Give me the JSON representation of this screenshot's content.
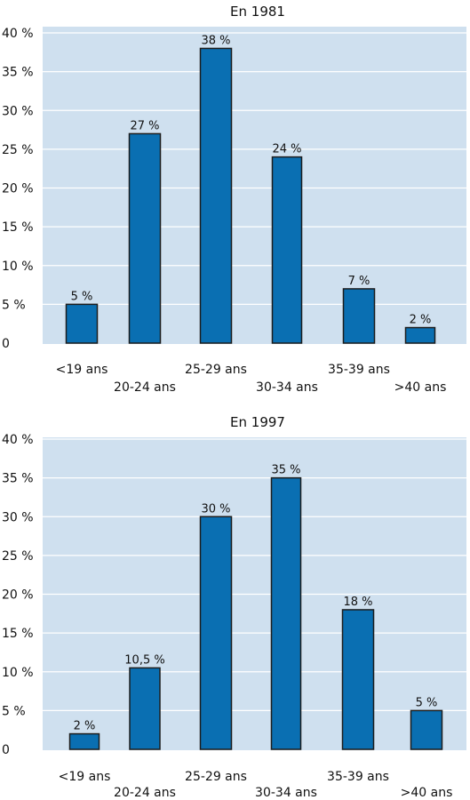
{
  "colors": {
    "bar": "#0a6fb2",
    "plot_background": "#cfe0ef",
    "gridline": "#ffffff"
  },
  "chart_data": [
    {
      "type": "bar",
      "title": "En 1981",
      "categories": [
        "<19 ans",
        "20-24 ans",
        "25-29 ans",
        "30-34 ans",
        "35-39 ans",
        ">40 ans"
      ],
      "values": [
        5,
        27,
        38,
        24,
        7,
        2
      ],
      "data_labels": [
        "5 %",
        "27 %",
        "38 %",
        "24 %",
        "7 %",
        "2 %"
      ],
      "yticks": [
        "0",
        "5 %",
        "10 %",
        "15 %",
        "20 %",
        "25 %",
        "30 %",
        "35 %",
        "40 %"
      ],
      "ylim": [
        0,
        40
      ],
      "grid": true,
      "xlabel": "",
      "ylabel": ""
    },
    {
      "type": "bar",
      "title": "En 1997",
      "categories": [
        "<19 ans",
        "20-24 ans",
        "25-29 ans",
        "30-34 ans",
        "35-39 ans",
        ">40 ans"
      ],
      "values": [
        2,
        10.5,
        30,
        35,
        18,
        5
      ],
      "data_labels": [
        "2 %",
        "10,5 %",
        "30 %",
        "35 %",
        "18 %",
        "5 %"
      ],
      "yticks": [
        "0",
        "5 %",
        "10 %",
        "15 %",
        "20 %",
        "25 %",
        "30 %",
        "35 %",
        "40 %"
      ],
      "ylim": [
        0,
        40
      ],
      "grid": true,
      "xlabel": "",
      "ylabel": ""
    }
  ]
}
